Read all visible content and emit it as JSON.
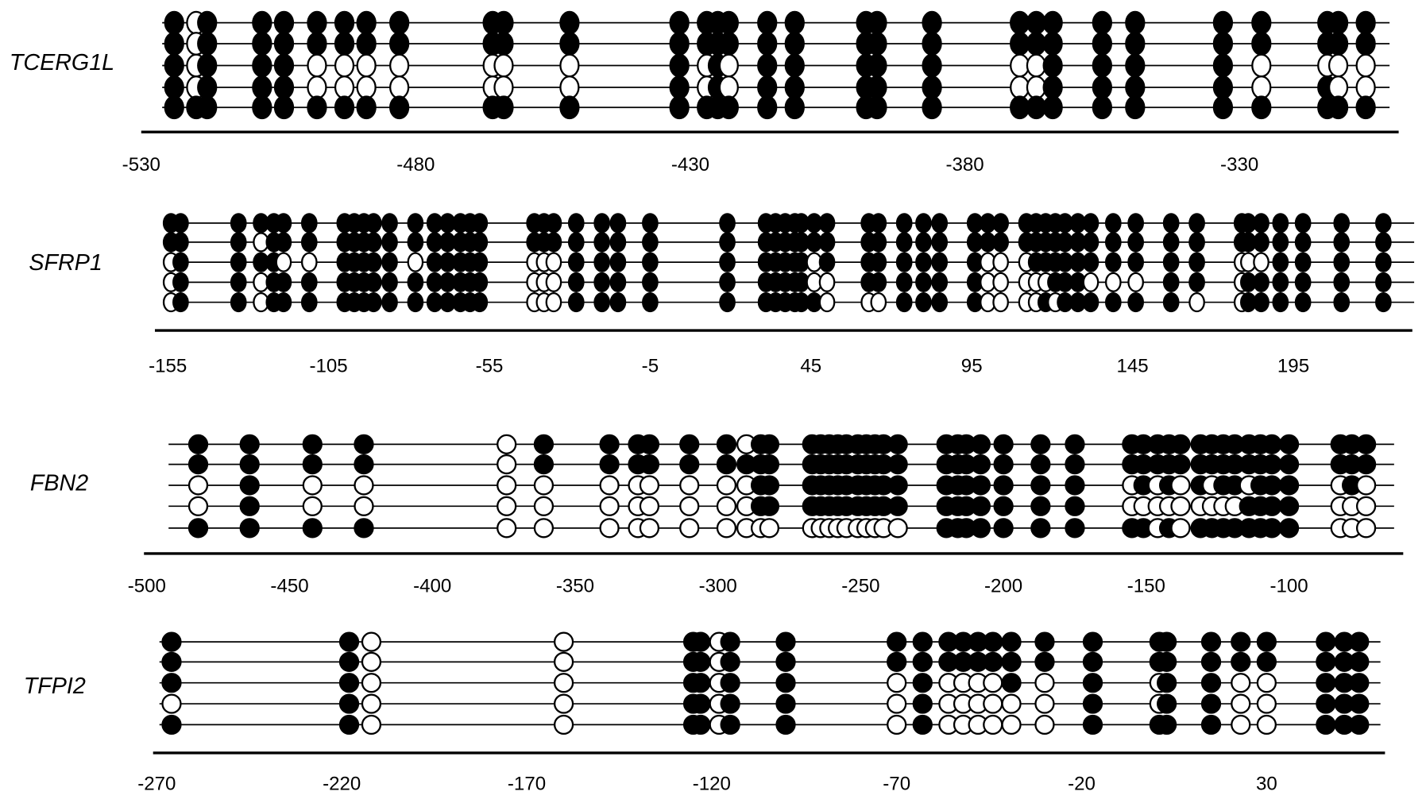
{
  "chart_data": [
    {
      "type": "lollipop",
      "label": "TCERG1L",
      "color": "#000000",
      "xlim": [
        -530,
        -301
      ],
      "xticks": [
        -530,
        -480,
        -430,
        -380,
        -330
      ],
      "positions": [
        -524,
        -520,
        -518,
        -508,
        -504,
        -498,
        -493,
        -489,
        -483,
        -466,
        -464,
        -452,
        -432,
        -427,
        -425,
        -423,
        -416,
        -411,
        -398,
        -396,
        -386,
        -370,
        -367,
        -364,
        -355,
        -349,
        -333,
        -326,
        -314,
        -312,
        -307
      ],
      "rows": [
        [
          1,
          0,
          1,
          1,
          1,
          1,
          1,
          1,
          1,
          1,
          1,
          1,
          1,
          1,
          1,
          1,
          1,
          1,
          1,
          1,
          1,
          1,
          1,
          1,
          1,
          1,
          1,
          1,
          1,
          1,
          1
        ],
        [
          1,
          0,
          1,
          1,
          1,
          1,
          1,
          1,
          1,
          1,
          1,
          1,
          1,
          1,
          1,
          1,
          1,
          1,
          1,
          1,
          1,
          1,
          1,
          1,
          1,
          1,
          1,
          1,
          1,
          1,
          1
        ],
        [
          1,
          0,
          1,
          1,
          1,
          0,
          0,
          0,
          0,
          0,
          0,
          0,
          1,
          0,
          1,
          0,
          1,
          1,
          1,
          1,
          1,
          0,
          0,
          1,
          1,
          1,
          1,
          0,
          0,
          0,
          0
        ],
        [
          1,
          0,
          1,
          1,
          1,
          0,
          0,
          0,
          0,
          0,
          0,
          0,
          1,
          0,
          1,
          0,
          1,
          1,
          1,
          1,
          1,
          0,
          0,
          1,
          1,
          1,
          1,
          0,
          1,
          0,
          0
        ],
        [
          1,
          1,
          1,
          1,
          1,
          1,
          1,
          1,
          1,
          1,
          1,
          1,
          1,
          1,
          1,
          1,
          1,
          1,
          1,
          1,
          1,
          1,
          1,
          1,
          1,
          1,
          1,
          1,
          1,
          1,
          1
        ]
      ]
    },
    {
      "type": "lollipop",
      "label": "SFRP1",
      "color": "#000000",
      "xlim": [
        -159,
        232
      ],
      "xticks": [
        -155,
        -105,
        -55,
        -5,
        45,
        95,
        145,
        195
      ],
      "positions": [
        -154,
        -151,
        -133,
        -126,
        -122,
        -119,
        -111,
        -100,
        -97,
        -94,
        -91,
        -86,
        -78,
        -72,
        -68,
        -64,
        -61,
        -58,
        -41,
        -38,
        -35,
        -28,
        -20,
        -15,
        -5,
        19,
        31,
        34,
        37,
        40,
        42,
        46,
        50,
        63,
        66,
        74,
        80,
        85,
        96,
        100,
        104,
        112,
        115,
        118,
        121,
        124,
        128,
        132,
        139,
        146,
        157,
        165,
        179,
        181,
        185,
        191,
        198,
        210,
        223
      ],
      "rows": [
        [
          1,
          1,
          1,
          1,
          1,
          1,
          1,
          1,
          1,
          1,
          1,
          1,
          1,
          1,
          1,
          1,
          1,
          1,
          1,
          1,
          1,
          1,
          1,
          1,
          1,
          1,
          1,
          1,
          1,
          1,
          1,
          1,
          1,
          1,
          1,
          1,
          1,
          1,
          1,
          1,
          1,
          1,
          1,
          1,
          1,
          1,
          1,
          1,
          1,
          1,
          1,
          1,
          1,
          1,
          1,
          1,
          1,
          1,
          1
        ],
        [
          1,
          1,
          1,
          0,
          1,
          1,
          1,
          1,
          1,
          1,
          1,
          1,
          1,
          1,
          1,
          1,
          1,
          1,
          1,
          1,
          1,
          1,
          1,
          1,
          1,
          1,
          1,
          1,
          1,
          1,
          1,
          1,
          1,
          1,
          1,
          1,
          1,
          1,
          1,
          1,
          1,
          1,
          1,
          1,
          1,
          1,
          1,
          1,
          1,
          1,
          1,
          1,
          1,
          1,
          1,
          1,
          1,
          1,
          1
        ],
        [
          0,
          1,
          1,
          1,
          1,
          0,
          0,
          1,
          1,
          1,
          1,
          1,
          0,
          1,
          1,
          1,
          1,
          1,
          0,
          0,
          0,
          1,
          1,
          1,
          1,
          1,
          1,
          1,
          1,
          1,
          1,
          0,
          1,
          1,
          1,
          1,
          1,
          1,
          1,
          0,
          0,
          0,
          1,
          1,
          1,
          1,
          1,
          1,
          1,
          1,
          1,
          1,
          0,
          0,
          0,
          1,
          1,
          1,
          1
        ],
        [
          0,
          1,
          1,
          0,
          1,
          1,
          1,
          1,
          1,
          1,
          1,
          1,
          1,
          1,
          1,
          1,
          1,
          1,
          0,
          0,
          0,
          1,
          1,
          1,
          1,
          1,
          1,
          1,
          1,
          1,
          1,
          0,
          0,
          1,
          1,
          1,
          1,
          1,
          1,
          0,
          0,
          0,
          0,
          0,
          1,
          1,
          1,
          0,
          0,
          0,
          1,
          1,
          0,
          1,
          1,
          1,
          1,
          1,
          1
        ],
        [
          0,
          1,
          1,
          0,
          1,
          1,
          1,
          1,
          1,
          1,
          1,
          1,
          1,
          1,
          1,
          1,
          1,
          1,
          0,
          0,
          0,
          1,
          1,
          1,
          1,
          1,
          1,
          1,
          1,
          1,
          1,
          1,
          0,
          0,
          0,
          1,
          1,
          1,
          1,
          0,
          0,
          0,
          0,
          1,
          0,
          1,
          1,
          1,
          1,
          1,
          1,
          0,
          0,
          1,
          1,
          1,
          1,
          1,
          1
        ]
      ]
    },
    {
      "type": "lollipop",
      "label": "FBN2",
      "color": "#000000",
      "xlim": [
        -501,
        -60
      ],
      "xticks": [
        -500,
        -450,
        -400,
        -350,
        -300,
        -250,
        -200,
        -150,
        -100
      ],
      "positions": [
        -482,
        -464,
        -442,
        -424,
        -374,
        -361,
        -338,
        -328,
        -324,
        -310,
        -297,
        -290,
        -285,
        -282,
        -267,
        -264,
        -261,
        -258,
        -255,
        -251,
        -248,
        -245,
        -242,
        -237,
        -220,
        -216,
        -213,
        -208,
        -200,
        -187,
        -175,
        -155,
        -151,
        -146,
        -142,
        -138,
        -131,
        -127,
        -123,
        -119,
        -114,
        -110,
        -106,
        -100,
        -82,
        -78,
        -73
      ],
      "rows": [
        [
          1,
          1,
          1,
          1,
          0,
          1,
          1,
          1,
          1,
          1,
          1,
          0,
          1,
          1,
          1,
          1,
          1,
          1,
          1,
          1,
          1,
          1,
          1,
          1,
          1,
          1,
          1,
          1,
          1,
          1,
          1,
          1,
          1,
          1,
          1,
          1,
          1,
          1,
          1,
          1,
          1,
          1,
          1,
          1,
          1,
          1,
          1
        ],
        [
          1,
          1,
          1,
          1,
          0,
          1,
          1,
          1,
          1,
          1,
          1,
          1,
          1,
          1,
          1,
          1,
          1,
          1,
          1,
          1,
          1,
          1,
          1,
          1,
          1,
          1,
          1,
          1,
          1,
          1,
          1,
          1,
          1,
          1,
          1,
          1,
          1,
          1,
          1,
          1,
          1,
          1,
          1,
          1,
          1,
          1,
          1
        ],
        [
          0,
          1,
          0,
          0,
          0,
          0,
          0,
          0,
          0,
          0,
          0,
          0,
          1,
          1,
          1,
          1,
          1,
          1,
          1,
          1,
          1,
          1,
          1,
          1,
          1,
          1,
          1,
          1,
          1,
          1,
          1,
          0,
          1,
          0,
          1,
          0,
          1,
          0,
          1,
          1,
          0,
          1,
          1,
          1,
          0,
          1,
          0
        ],
        [
          0,
          1,
          0,
          0,
          0,
          0,
          0,
          0,
          0,
          0,
          0,
          0,
          1,
          1,
          1,
          1,
          1,
          1,
          1,
          1,
          1,
          1,
          1,
          1,
          1,
          1,
          1,
          1,
          1,
          1,
          1,
          0,
          0,
          0,
          0,
          0,
          0,
          0,
          0,
          0,
          1,
          1,
          1,
          1,
          0,
          0,
          0
        ],
        [
          1,
          1,
          1,
          1,
          0,
          0,
          0,
          0,
          0,
          0,
          0,
          0,
          0,
          0,
          0,
          0,
          0,
          0,
          0,
          0,
          0,
          0,
          0,
          0,
          1,
          1,
          1,
          1,
          1,
          1,
          1,
          1,
          1,
          0,
          1,
          0,
          1,
          1,
          1,
          1,
          1,
          1,
          1,
          1,
          0,
          0,
          0
        ]
      ]
    },
    {
      "type": "lollipop",
      "label": "TFPI2",
      "color": "#000000",
      "xlim": [
        -271,
        62
      ],
      "xticks": [
        -270,
        -220,
        -170,
        -120,
        -70,
        -20,
        30
      ],
      "positions": [
        -266,
        -218,
        -212,
        -160,
        -125,
        -123,
        -118,
        -115,
        -100,
        -70,
        -63,
        -56,
        -52,
        -48,
        -44,
        -39,
        -30,
        -17,
        1,
        3,
        15,
        23,
        30,
        46,
        51,
        55
      ],
      "rows": [
        [
          1,
          1,
          0,
          0,
          1,
          1,
          0,
          1,
          1,
          1,
          1,
          1,
          1,
          1,
          1,
          1,
          1,
          1,
          1,
          1,
          1,
          1,
          1,
          1,
          1,
          1
        ],
        [
          1,
          1,
          0,
          0,
          1,
          1,
          0,
          1,
          1,
          1,
          1,
          1,
          1,
          1,
          1,
          1,
          1,
          1,
          1,
          1,
          1,
          1,
          1,
          1,
          1,
          1
        ],
        [
          1,
          1,
          0,
          0,
          1,
          1,
          0,
          1,
          1,
          0,
          1,
          0,
          0,
          0,
          0,
          1,
          0,
          1,
          0,
          1,
          1,
          0,
          0,
          1,
          1,
          1
        ],
        [
          0,
          1,
          0,
          0,
          1,
          1,
          0,
          1,
          1,
          0,
          1,
          0,
          0,
          0,
          0,
          0,
          0,
          1,
          0,
          1,
          1,
          0,
          0,
          1,
          1,
          1
        ],
        [
          1,
          1,
          0,
          0,
          1,
          1,
          0,
          1,
          1,
          0,
          1,
          0,
          0,
          0,
          0,
          0,
          0,
          1,
          1,
          1,
          1,
          0,
          0,
          1,
          1,
          1
        ]
      ]
    }
  ]
}
